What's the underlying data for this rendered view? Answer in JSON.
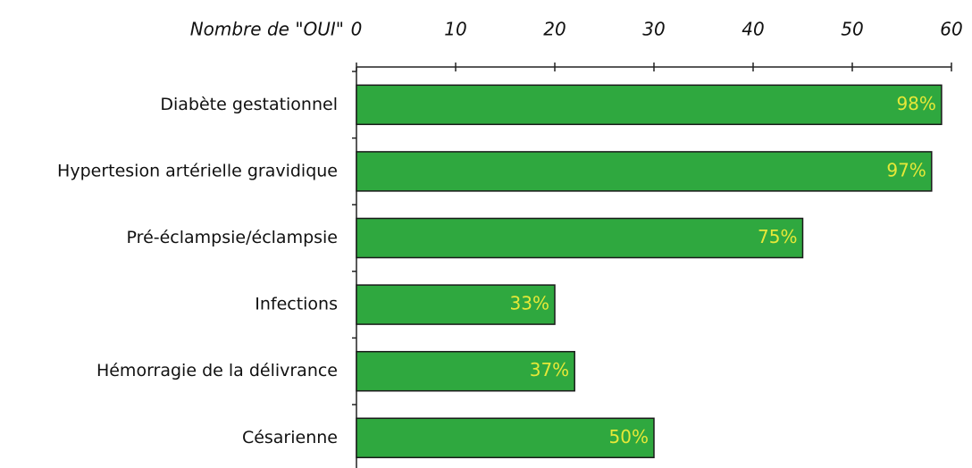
{
  "chart_data": {
    "type": "bar",
    "orientation": "horizontal",
    "x_label": "Nombre de \"OUI\"",
    "categories": [
      "Diabète gestationnel",
      "Hypertesion artérielle gravidique",
      "Pré-éclampsie/éclampsie",
      "Infections",
      "Hémorragie de la délivrance",
      "Césarienne"
    ],
    "values": [
      59,
      58,
      45,
      20,
      22,
      30
    ],
    "bar_labels": [
      "98%",
      "97%",
      "75%",
      "33%",
      "37%",
      "50%"
    ],
    "color": "#2fa83f",
    "xlim": [
      0,
      60
    ],
    "xticks": [
      0,
      10,
      20,
      30,
      40,
      50,
      60
    ]
  }
}
